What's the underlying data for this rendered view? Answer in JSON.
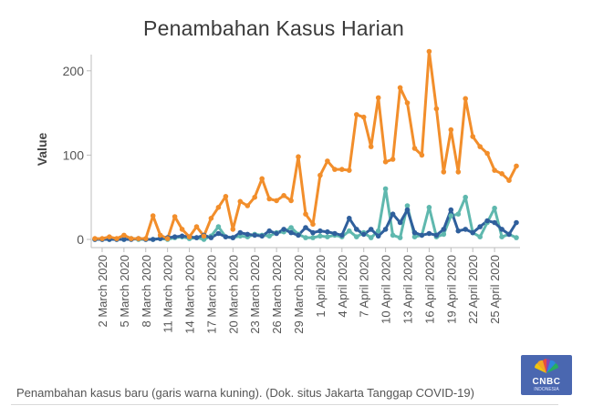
{
  "title": "Penambahan Kasus Harian",
  "caption": "Penambahan kasus baru (garis warna kuning). (Dok. situs Jakarta Tanggap COVID-19)",
  "logo": {
    "text": "CNBC",
    "subtext": "INDONESIA"
  },
  "colors": {
    "orange": "#f28e2b",
    "teal": "#5fb8ae",
    "blue": "#2f5f9c",
    "axis": "#bdbdbd",
    "text": "#555555"
  },
  "chart_data": {
    "type": "line",
    "ylabel": "Value",
    "xlabel": "",
    "ylim": [
      0,
      230
    ],
    "yticks": [
      0,
      100,
      200
    ],
    "grid": false,
    "x_tick_labels": [
      "2 March 2020",
      "5 March 2020",
      "8 March 2020",
      "11 March 2020",
      "14 March 2020",
      "17 March 2020",
      "20 March 2020",
      "23 March 2020",
      "26 March 2020",
      "29 March 2020",
      "1 April 2020",
      "4 April 2020",
      "7 April 2020",
      "10 April 2020",
      "13 April 2020",
      "16 April 2020",
      "19 April 2020",
      "22 April 2020",
      "25 April 2020"
    ],
    "x": [
      "1 Mar",
      "2 Mar",
      "3 Mar",
      "4 Mar",
      "5 Mar",
      "6 Mar",
      "7 Mar",
      "8 Mar",
      "9 Mar",
      "10 Mar",
      "11 Mar",
      "12 Mar",
      "13 Mar",
      "14 Mar",
      "15 Mar",
      "16 Mar",
      "17 Mar",
      "18 Mar",
      "19 Mar",
      "20 Mar",
      "21 Mar",
      "22 Mar",
      "23 Mar",
      "24 Mar",
      "25 Mar",
      "26 Mar",
      "27 Mar",
      "28 Mar",
      "29 Mar",
      "30 Mar",
      "31 Mar",
      "1 Apr",
      "2 Apr",
      "3 Apr",
      "4 Apr",
      "5 Apr",
      "6 Apr",
      "7 Apr",
      "8 Apr",
      "9 Apr",
      "10 Apr",
      "11 Apr",
      "12 Apr",
      "13 Apr",
      "14 Apr",
      "15 Apr",
      "16 Apr",
      "17 Apr",
      "18 Apr",
      "19 Apr",
      "20 Apr",
      "21 Apr",
      "22 Apr",
      "23 Apr",
      "24 Apr",
      "25 Apr",
      "26 Apr",
      "27 Apr",
      "28 Apr"
    ],
    "series": [
      {
        "color": "#f28e2b",
        "values": [
          1,
          1,
          3,
          1,
          5,
          1,
          1,
          1,
          28,
          5,
          1,
          27,
          12,
          3,
          15,
          4,
          25,
          38,
          51,
          12,
          45,
          40,
          50,
          72,
          48,
          46,
          52,
          46,
          98,
          30,
          18,
          76,
          93,
          83,
          83,
          82,
          148,
          145,
          110,
          168,
          92,
          95,
          180,
          162,
          108,
          100,
          223,
          155,
          80,
          130,
          80,
          167,
          122,
          110,
          102,
          82,
          78,
          70,
          87
        ]
      },
      {
        "color": "#5fb8ae",
        "values": [
          0,
          0,
          0,
          0,
          0,
          1,
          0,
          0,
          0,
          1,
          0,
          2,
          3,
          1,
          2,
          0,
          4,
          15,
          3,
          2,
          4,
          3,
          6,
          5,
          4,
          8,
          9,
          14,
          6,
          2,
          2,
          4,
          3,
          5,
          3,
          10,
          3,
          8,
          2,
          10,
          60,
          5,
          2,
          40,
          3,
          5,
          38,
          3,
          6,
          28,
          30,
          50,
          8,
          3,
          20,
          37,
          3,
          6,
          2
        ]
      },
      {
        "color": "#2f5f9c",
        "values": [
          0,
          0,
          0,
          0,
          0,
          0,
          1,
          0,
          0,
          1,
          2,
          3,
          4,
          3,
          2,
          5,
          2,
          7,
          3,
          2,
          8,
          6,
          5,
          4,
          10,
          7,
          12,
          8,
          5,
          14,
          8,
          10,
          9,
          7,
          5,
          25,
          12,
          6,
          12,
          4,
          12,
          30,
          20,
          35,
          8,
          5,
          7,
          5,
          12,
          35,
          10,
          12,
          8,
          15,
          22,
          20,
          12,
          6,
          20
        ]
      }
    ]
  }
}
